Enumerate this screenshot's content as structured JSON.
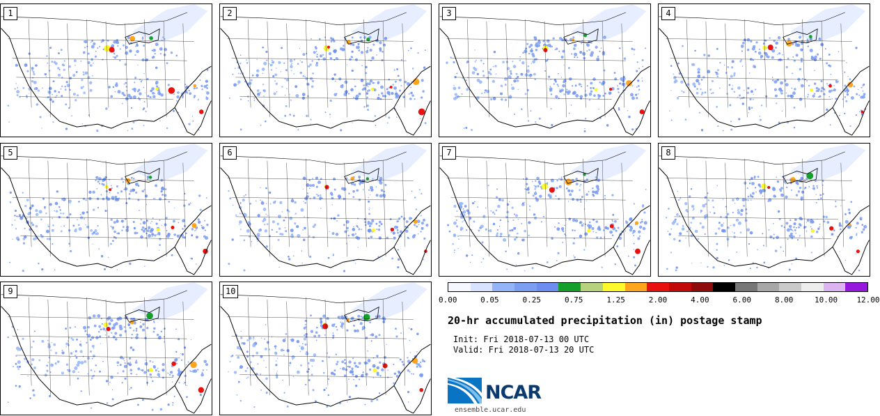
{
  "panels": [
    {
      "label": "1"
    },
    {
      "label": "2"
    },
    {
      "label": "3"
    },
    {
      "label": "4"
    },
    {
      "label": "5"
    },
    {
      "label": "6"
    },
    {
      "label": "7"
    },
    {
      "label": "8"
    },
    {
      "label": "9"
    },
    {
      "label": "10"
    }
  ],
  "colorbar": {
    "colors": [
      "#f5f8ff",
      "#d8e4ff",
      "#94b4f8",
      "#7b9ef2",
      "#6d8ef0",
      "#14a02a",
      "#b6d27c",
      "#fdf92b",
      "#fda51c",
      "#e8110e",
      "#c10a0a",
      "#8e0c0c",
      "#000000",
      "#777777",
      "#a8a8a8",
      "#cacaca",
      "#ededed",
      "#dcb4f0",
      "#9618dc"
    ],
    "tick_labels": [
      "0.00",
      "0.05",
      "0.25",
      "0.75",
      "1.25",
      "2.00",
      "4.00",
      "6.00",
      "8.00",
      "10.00",
      "12.00"
    ]
  },
  "title": "20-hr accumulated precipitation (in) postage stamp",
  "init": "Init: Fri 2018-07-13 00 UTC",
  "valid": "Valid: Fri 2018-07-13 20 UTC",
  "logo": {
    "text": "NCAR",
    "url_text": "ensemble.ucar.edu"
  }
}
